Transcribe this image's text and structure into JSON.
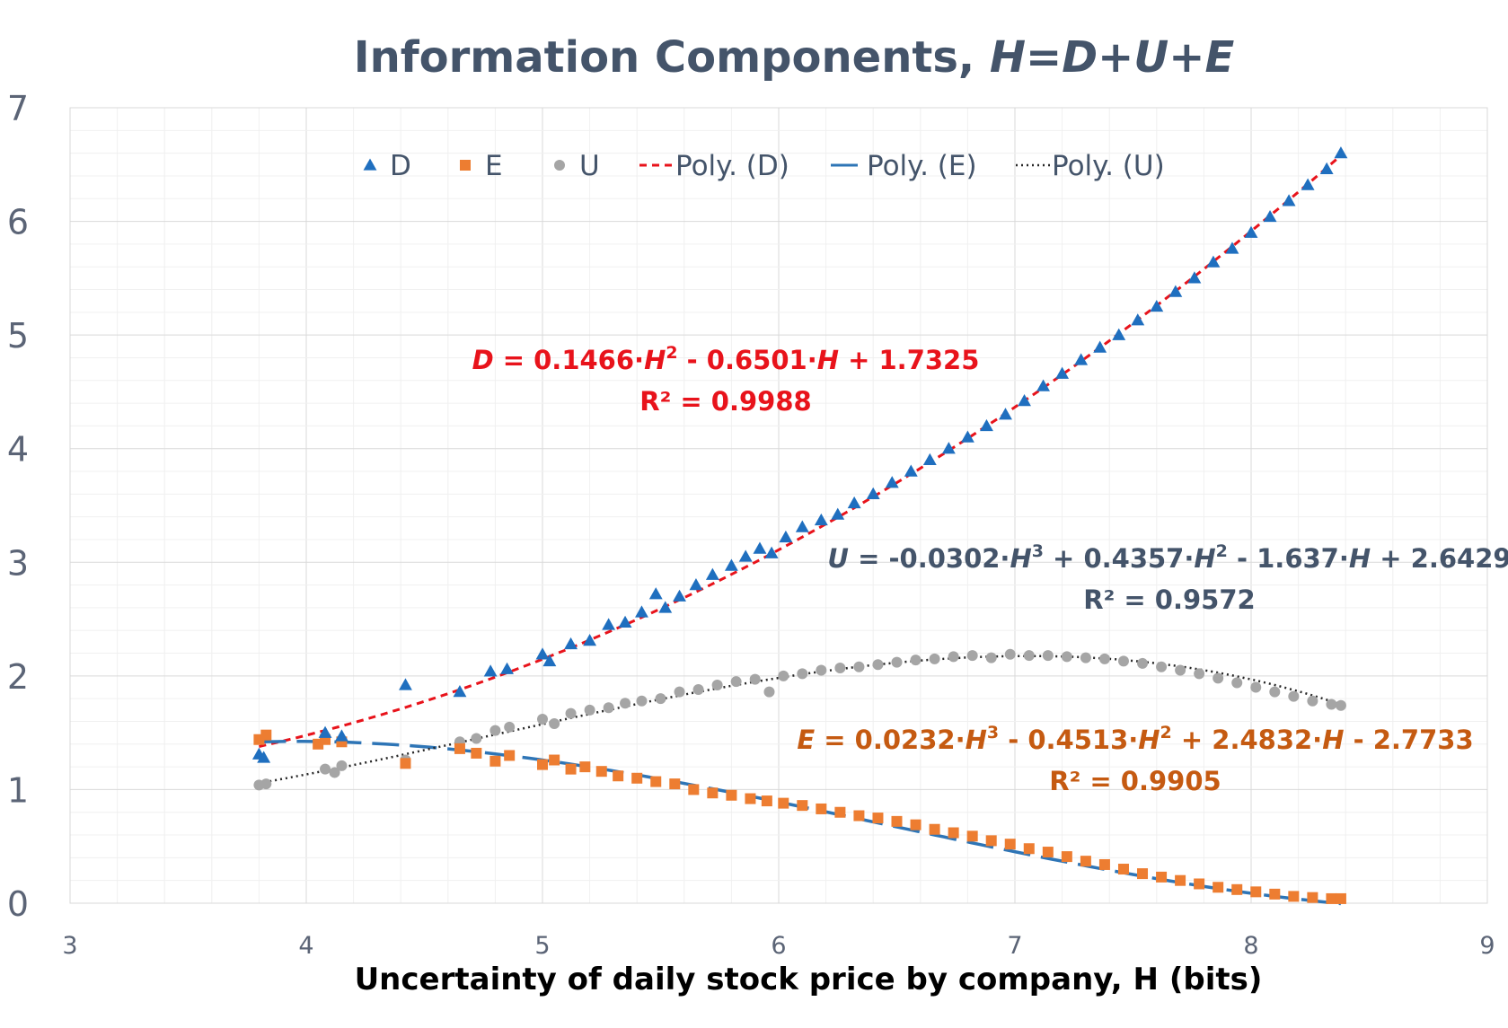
{
  "chart_data": {
    "type": "scatter",
    "title": {
      "plain": "Information Components, ",
      "italic": "H=D+U+E"
    },
    "xlabel": "Uncertainty of daily stock price by company, H (bits)",
    "ylabel": "",
    "xlim": [
      3,
      9
    ],
    "ylim": [
      0,
      7
    ],
    "xticks": [
      "3",
      "4",
      "5",
      "6",
      "7",
      "8",
      "9"
    ],
    "yticks": [
      "0",
      "1",
      "2",
      "3",
      "4",
      "5",
      "6",
      "7"
    ],
    "grid": true,
    "legend": {
      "position": "top",
      "items": [
        {
          "label": "D",
          "marker": "triangle",
          "color": "#1f6fbf"
        },
        {
          "label": "E",
          "marker": "square",
          "color": "#ed7d31"
        },
        {
          "label": "U",
          "marker": "circle",
          "color": "#a5a5a5"
        },
        {
          "label": "Poly. (D)",
          "line": "dashed",
          "color": "#e8131b"
        },
        {
          "label": "Poly. (E)",
          "line": "longdash",
          "color": "#2e75b6"
        },
        {
          "label": "Poly. (U)",
          "line": "dotted",
          "color": "#262626"
        }
      ]
    },
    "series": [
      {
        "name": "D",
        "color": "#1f6fbf",
        "marker": "triangle",
        "x": [
          3.8,
          3.82,
          4.08,
          4.15,
          4.42,
          4.65,
          4.78,
          4.85,
          5.0,
          5.03,
          5.12,
          5.2,
          5.28,
          5.35,
          5.42,
          5.48,
          5.52,
          5.58,
          5.65,
          5.72,
          5.8,
          5.86,
          5.92,
          5.97,
          6.03,
          6.1,
          6.18,
          6.25,
          6.32,
          6.4,
          6.48,
          6.56,
          6.64,
          6.72,
          6.8,
          6.88,
          6.96,
          7.04,
          7.12,
          7.2,
          7.28,
          7.36,
          7.44,
          7.52,
          7.6,
          7.68,
          7.76,
          7.84,
          7.92,
          8.0,
          8.08,
          8.16,
          8.24,
          8.32,
          8.38
        ],
        "y": [
          1.31,
          1.28,
          1.5,
          1.47,
          1.92,
          1.86,
          2.04,
          2.06,
          2.19,
          2.13,
          2.28,
          2.31,
          2.45,
          2.47,
          2.56,
          2.72,
          2.6,
          2.7,
          2.8,
          2.89,
          2.97,
          3.05,
          3.12,
          3.08,
          3.22,
          3.31,
          3.37,
          3.42,
          3.52,
          3.6,
          3.7,
          3.8,
          3.9,
          4.0,
          4.1,
          4.2,
          4.3,
          4.42,
          4.55,
          4.66,
          4.78,
          4.89,
          5.0,
          5.13,
          5.25,
          5.38,
          5.5,
          5.64,
          5.76,
          5.9,
          6.04,
          6.18,
          6.32,
          6.46,
          6.6
        ]
      },
      {
        "name": "E",
        "color": "#ed7d31",
        "marker": "square",
        "x": [
          3.8,
          3.83,
          4.05,
          4.08,
          4.15,
          4.42,
          4.65,
          4.72,
          4.8,
          4.86,
          5.0,
          5.05,
          5.12,
          5.18,
          5.25,
          5.32,
          5.4,
          5.48,
          5.56,
          5.64,
          5.72,
          5.8,
          5.88,
          5.95,
          6.02,
          6.1,
          6.18,
          6.26,
          6.34,
          6.42,
          6.5,
          6.58,
          6.66,
          6.74,
          6.82,
          6.9,
          6.98,
          7.06,
          7.14,
          7.22,
          7.3,
          7.38,
          7.46,
          7.54,
          7.62,
          7.7,
          7.78,
          7.86,
          7.94,
          8.02,
          8.1,
          8.18,
          8.26,
          8.34,
          8.38
        ],
        "y": [
          1.44,
          1.48,
          1.4,
          1.44,
          1.42,
          1.23,
          1.36,
          1.32,
          1.25,
          1.3,
          1.22,
          1.26,
          1.18,
          1.2,
          1.16,
          1.12,
          1.1,
          1.07,
          1.05,
          1.0,
          0.97,
          0.95,
          0.92,
          0.9,
          0.88,
          0.86,
          0.83,
          0.8,
          0.77,
          0.75,
          0.72,
          0.69,
          0.65,
          0.62,
          0.59,
          0.55,
          0.52,
          0.48,
          0.45,
          0.41,
          0.37,
          0.34,
          0.3,
          0.26,
          0.23,
          0.2,
          0.17,
          0.14,
          0.12,
          0.1,
          0.08,
          0.06,
          0.05,
          0.04,
          0.04
        ]
      },
      {
        "name": "U",
        "color": "#a5a5a5",
        "marker": "circle",
        "x": [
          3.8,
          3.83,
          4.08,
          4.12,
          4.15,
          4.42,
          4.65,
          4.72,
          4.8,
          4.86,
          5.0,
          5.05,
          5.12,
          5.2,
          5.28,
          5.35,
          5.42,
          5.5,
          5.58,
          5.66,
          5.74,
          5.82,
          5.9,
          5.96,
          6.02,
          6.1,
          6.18,
          6.26,
          6.34,
          6.42,
          6.5,
          6.58,
          6.66,
          6.74,
          6.82,
          6.9,
          6.98,
          7.06,
          7.14,
          7.22,
          7.3,
          7.38,
          7.46,
          7.54,
          7.62,
          7.7,
          7.78,
          7.86,
          7.94,
          8.02,
          8.1,
          8.18,
          8.26,
          8.34,
          8.38
        ],
        "y": [
          1.04,
          1.05,
          1.18,
          1.15,
          1.21,
          1.26,
          1.42,
          1.45,
          1.52,
          1.55,
          1.62,
          1.58,
          1.67,
          1.7,
          1.72,
          1.76,
          1.78,
          1.8,
          1.86,
          1.88,
          1.92,
          1.95,
          1.97,
          1.86,
          2.0,
          2.02,
          2.05,
          2.07,
          2.08,
          2.1,
          2.12,
          2.14,
          2.15,
          2.17,
          2.18,
          2.16,
          2.19,
          2.18,
          2.18,
          2.17,
          2.16,
          2.15,
          2.13,
          2.11,
          2.08,
          2.05,
          2.02,
          1.98,
          1.94,
          1.9,
          1.86,
          1.82,
          1.78,
          1.75,
          1.74
        ]
      }
    ],
    "trendlines": [
      {
        "name": "Poly. (D)",
        "color": "#e8131b",
        "dash": "8 6",
        "width": 3,
        "coeffs": [
          1.7325,
          -0.6501,
          0.1466
        ],
        "range": [
          3.8,
          8.38
        ]
      },
      {
        "name": "Poly. (E)",
        "color": "#2e75b6",
        "dash": "30 12",
        "width": 3.5,
        "coeffs": [
          -2.7733,
          2.4832,
          -0.4513,
          0.0232
        ],
        "range": [
          3.8,
          8.38
        ]
      },
      {
        "name": "Poly. (U)",
        "color": "#262626",
        "dash": "2 4",
        "width": 2.5,
        "coeffs": [
          2.6429,
          -1.637,
          0.4357,
          -0.0302
        ],
        "range": [
          3.8,
          8.38
        ]
      }
    ],
    "annotations": [
      {
        "id": "d",
        "color": "#e8131b",
        "eq": [
          {
            "t": "D",
            "i": true
          },
          {
            "t": " = 0.1466·"
          },
          {
            "t": "H",
            "i": true
          },
          {
            "t": "2",
            "sup": true
          },
          {
            "t": " - 0.6501·"
          },
          {
            "t": "H",
            "i": true
          },
          {
            "t": " + 1.7325"
          }
        ],
        "r2": "R² = 0.9988"
      },
      {
        "id": "u",
        "color": "#44546a",
        "eq": [
          {
            "t": "U",
            "i": true
          },
          {
            "t": " = -0.0302·"
          },
          {
            "t": "H",
            "i": true
          },
          {
            "t": "3",
            "sup": true
          },
          {
            "t": " + 0.4357·"
          },
          {
            "t": "H",
            "i": true
          },
          {
            "t": "2",
            "sup": true
          },
          {
            "t": " - 1.637·"
          },
          {
            "t": "H",
            "i": true
          },
          {
            "t": " + 2.6429"
          }
        ],
        "r2": "R² = 0.9572"
      },
      {
        "id": "e",
        "color": "#c55a11",
        "eq": [
          {
            "t": "E",
            "i": true
          },
          {
            "t": " = 0.0232·"
          },
          {
            "t": "H",
            "i": true
          },
          {
            "t": "3",
            "sup": true
          },
          {
            "t": " - 0.4513·"
          },
          {
            "t": "H",
            "i": true
          },
          {
            "t": "2",
            "sup": true
          },
          {
            "t": " + 2.4832·"
          },
          {
            "t": "H",
            "i": true
          },
          {
            "t": " - 2.7733"
          }
        ],
        "r2": "R² = 0.9905"
      }
    ]
  }
}
